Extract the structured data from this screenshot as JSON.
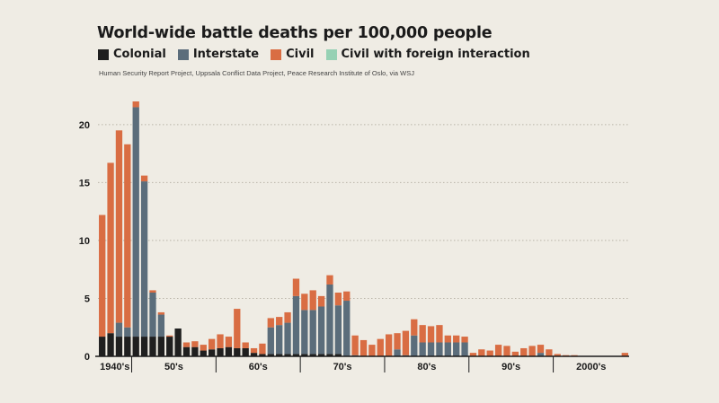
{
  "colors": {
    "Colonial": "#1f1f1f",
    "Interstate": "#5b6d7b",
    "Civil": "#d96d43",
    "Civil with foreign interaction": "#96d1b4",
    "background": "#efece4",
    "grid": "#b9b4a8"
  },
  "chart_data": {
    "type": "bar",
    "stacked": true,
    "title": "World-wide battle deaths per 100,000 people",
    "source": "Human Security Report Project, Uppsala Conflict Data Project, Peace Research Institute of Oslo, via WSJ",
    "series_names": [
      "Colonial",
      "Interstate",
      "Civil",
      "Civil with foreign interaction"
    ],
    "ylim": [
      0,
      22
    ],
    "yticks": [
      0,
      5,
      10,
      15,
      20
    ],
    "grid": true,
    "legend_position": "top-left",
    "decade_labels": [
      "1940's",
      "50's",
      "60's",
      "70's",
      "80's",
      "90's",
      "2000's"
    ],
    "x": [
      1946,
      1947,
      1948,
      1949,
      1950,
      1951,
      1952,
      1953,
      1954,
      1955,
      1956,
      1957,
      1958,
      1959,
      1960,
      1961,
      1962,
      1963,
      1964,
      1965,
      1966,
      1967,
      1968,
      1969,
      1970,
      1971,
      1972,
      1973,
      1974,
      1975,
      1976,
      1977,
      1978,
      1979,
      1980,
      1981,
      1982,
      1983,
      1984,
      1985,
      1986,
      1987,
      1988,
      1989,
      1990,
      1991,
      1992,
      1993,
      1994,
      1995,
      1996,
      1997,
      1998,
      1999,
      2000,
      2001,
      2002,
      2003,
      2004,
      2005,
      2006,
      2007,
      2008
    ],
    "series": [
      {
        "name": "Colonial",
        "values": [
          1.7,
          2.0,
          1.7,
          1.7,
          1.7,
          1.7,
          1.7,
          1.7,
          1.7,
          2.4,
          0.8,
          0.8,
          0.5,
          0.6,
          0.7,
          0.8,
          0.7,
          0.7,
          0.3,
          0.2,
          0.2,
          0.2,
          0.2,
          0.2,
          0.2,
          0.2,
          0.2,
          0.2,
          0.2,
          0,
          0,
          0,
          0,
          0,
          0,
          0,
          0,
          0,
          0,
          0,
          0,
          0,
          0,
          0,
          0,
          0,
          0,
          0,
          0,
          0,
          0,
          0,
          0,
          0,
          0,
          0,
          0,
          0,
          0,
          0,
          0,
          0,
          0
        ]
      },
      {
        "name": "Interstate",
        "values": [
          0,
          0,
          1.2,
          0.8,
          19.8,
          13.4,
          3.8,
          1.9,
          0,
          0,
          0,
          0,
          0,
          0,
          0,
          0,
          0,
          0,
          0,
          0,
          2.3,
          2.5,
          2.7,
          5.0,
          3.8,
          3.8,
          4.1,
          6.0,
          4.2,
          4.8,
          0.1,
          0,
          0,
          0,
          0,
          0.6,
          0.1,
          1.8,
          1.2,
          1.2,
          1.2,
          1.2,
          1.2,
          1.2,
          0,
          0,
          0,
          0,
          0,
          0,
          0,
          0,
          0.3,
          0,
          0,
          0,
          0,
          0,
          0,
          0,
          0,
          0,
          0
        ]
      },
      {
        "name": "Civil",
        "values": [
          10.5,
          14.7,
          16.6,
          15.8,
          0.5,
          0.5,
          0.2,
          0.2,
          0.1,
          0,
          0.4,
          0.5,
          0.5,
          0.9,
          1.2,
          0.9,
          3.4,
          0.5,
          0.4,
          0.9,
          0.8,
          0.7,
          0.9,
          1.5,
          1.4,
          1.7,
          0.9,
          0.8,
          1.1,
          0.8,
          1.7,
          1.4,
          1.0,
          1.5,
          1.9,
          1.4,
          2.1,
          1.4,
          1.5,
          1.4,
          1.5,
          0.6,
          0.6,
          0.5,
          0.3,
          0.6,
          0.5,
          1.0,
          0.9,
          0.4,
          0.7,
          0.9,
          0.7,
          0.6,
          0.2,
          0.1,
          0.1,
          0,
          0,
          0,
          0,
          0,
          0.3
        ]
      },
      {
        "name": "Civil with foreign interaction",
        "values": [
          0,
          0,
          0,
          0,
          0,
          0,
          0,
          0,
          0,
          0,
          0,
          0,
          0,
          0,
          0,
          0,
          0,
          0,
          0,
          0,
          0,
          0,
          0,
          0,
          0,
          0,
          0,
          0,
          0,
          0,
          0,
          0,
          0,
          0,
          0,
          0,
          0,
          0,
          0,
          0,
          0,
          0,
          0,
          0,
          0,
          0,
          0,
          0,
          0,
          0,
          0,
          0,
          0,
          0,
          0,
          0,
          0,
          0,
          0,
          0,
          0,
          0,
          0
        ]
      }
    ]
  }
}
